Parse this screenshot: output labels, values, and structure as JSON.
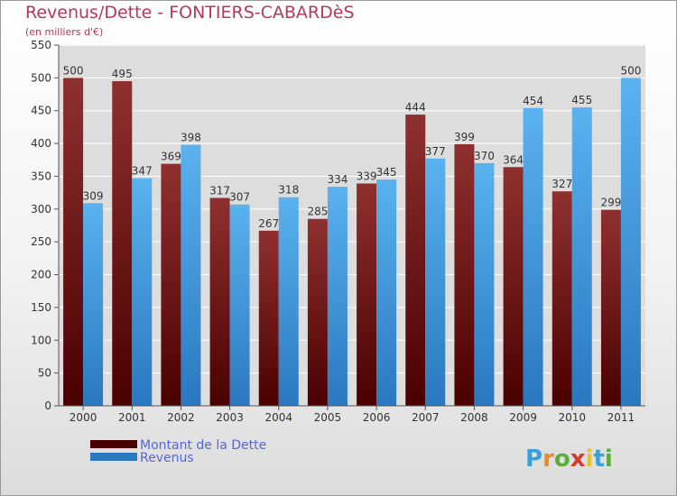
{
  "chart_data": {
    "type": "bar",
    "title": "Revenus/Dette - FONTIERS-CABARDèS",
    "subtitle": "(en milliers d'€)",
    "xlabel": "",
    "ylabel": "",
    "ylim": [
      0,
      550
    ],
    "yticks": [
      0,
      50,
      100,
      150,
      200,
      250,
      300,
      350,
      400,
      450,
      500,
      550
    ],
    "grid": true,
    "legend_position": "bottom-left",
    "categories": [
      "2000",
      "2001",
      "2002",
      "2003",
      "2004",
      "2005",
      "2006",
      "2007",
      "2008",
      "2009",
      "2010",
      "2011"
    ],
    "series": [
      {
        "name": "Montant de la Dette",
        "color": "#7a1a1a",
        "values": [
          500,
          495,
          369,
          317,
          267,
          285,
          339,
          444,
          399,
          364,
          327,
          299
        ]
      },
      {
        "name": "Revenus",
        "color": "#3d9be0",
        "values": [
          309,
          347,
          398,
          307,
          318,
          334,
          345,
          377,
          370,
          454,
          455,
          500
        ]
      }
    ]
  },
  "colors": {
    "title": "#b5385a",
    "dette": "#7a1a1a",
    "revenus": "#3d9be0",
    "legend_text": "#5566dd"
  },
  "logo": {
    "letters": [
      "P",
      "r",
      "o",
      "x",
      "i",
      "t",
      "i"
    ],
    "colors": [
      "#3aa0d8",
      "#e88a2a",
      "#5aae3a",
      "#d63a2a",
      "#e8c22a",
      "#3aa0d8",
      "#5aae3a"
    ]
  }
}
